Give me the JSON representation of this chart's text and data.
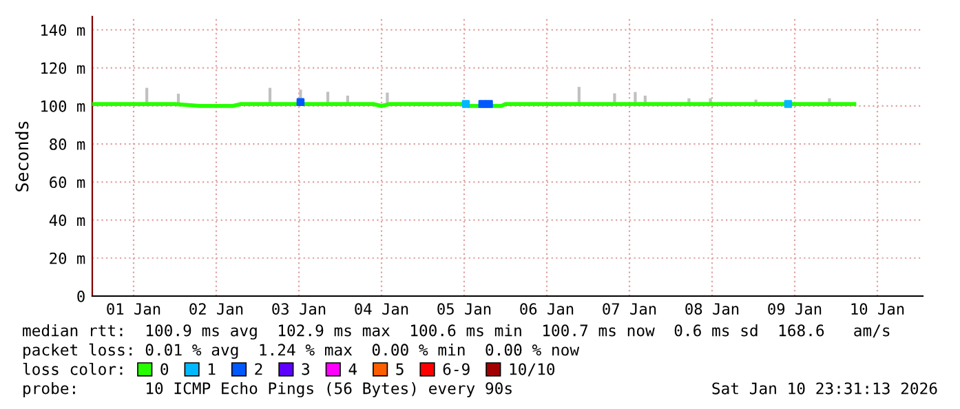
{
  "chart_data": {
    "type": "line",
    "ylabel": "Seconds",
    "xlim": [
      "2026-01-01T00:00",
      "2026-01-11T01:12"
    ],
    "ylim": [
      0,
      147
    ],
    "xticks": [
      {
        "value": "2026-01-01T12:00",
        "label": "01 Jan"
      },
      {
        "value": "2026-01-02T12:00",
        "label": "02 Jan"
      },
      {
        "value": "2026-01-03T12:00",
        "label": "03 Jan"
      },
      {
        "value": "2026-01-04T12:00",
        "label": "04 Jan"
      },
      {
        "value": "2026-01-05T12:00",
        "label": "05 Jan"
      },
      {
        "value": "2026-01-06T12:00",
        "label": "06 Jan"
      },
      {
        "value": "2026-01-07T12:00",
        "label": "07 Jan"
      },
      {
        "value": "2026-01-08T12:00",
        "label": "08 Jan"
      },
      {
        "value": "2026-01-09T12:00",
        "label": "09 Jan"
      },
      {
        "value": "2026-01-10T12:00",
        "label": "10 Jan"
      }
    ],
    "yticks": [
      0,
      {
        "value": 20,
        "label": "20 m"
      },
      {
        "value": 40,
        "label": "40 m"
      },
      {
        "value": 60,
        "label": "60 m"
      },
      {
        "value": 80,
        "label": "80 m"
      },
      {
        "value": 100,
        "label": "100 m"
      },
      {
        "value": 120,
        "label": "120 m"
      },
      {
        "value": 140,
        "label": "140 m"
      }
    ],
    "grid": true,
    "legend": "bottom",
    "legend_title": "loss color:",
    "series": [
      {
        "type": "bar",
        "color": "#c0c0c0",
        "x": [
          "2026-01-01T15:50",
          "2026-01-02T01:00",
          "2026-01-03T03:36",
          "2026-01-03T12:29",
          "2026-01-03T20:24",
          "2026-01-04T02:10",
          "2026-01-04T13:41",
          "2026-01-06T21:22",
          "2026-01-07T07:41",
          "2026-01-07T13:41",
          "2026-01-07T16:34",
          "2026-01-08T05:17",
          "2026-01-08T11:31",
          "2026-01-09T00:43",
          "2026-01-09T22:05"
        ],
        "base": [
          101,
          101,
          101,
          101,
          101,
          101,
          101,
          101,
          101,
          101,
          101,
          101,
          101,
          101,
          101
        ],
        "values": [
          8.5,
          5.4,
          8.5,
          7.6,
          6.4,
          4.4,
          6,
          9,
          5.6,
          6.3,
          4.4,
          3,
          3,
          2.3,
          3
        ]
      },
      {
        "name": "0",
        "color": "#26ff00",
        "x": [
          "2026-01-01T00:00",
          "2026-01-01T21:36",
          "2026-01-02T00:00",
          "2026-01-02T07:12",
          "2026-01-02T16:48",
          "2026-01-02T19:12",
          "2026-01-04T09:36",
          "2026-01-04T12:00",
          "2026-01-04T14:24",
          "2026-01-05T12:00",
          "2026-01-05T13:12",
          "2026-01-05T14:24",
          "2026-01-05T22:48",
          "2026-01-06T00:00",
          "2026-01-10T05:17"
        ],
        "values": [
          101,
          101,
          101,
          100,
          100,
          101,
          101,
          100,
          101,
          101,
          100,
          100,
          100,
          101,
          101
        ]
      },
      {
        "name": "1",
        "type": "scatter",
        "color": "#00b8ff",
        "x": [
          "2026-01-05T12:29",
          "2026-01-09T10:05"
        ],
        "values": [
          101,
          101
        ]
      },
      {
        "name": "2",
        "type": "scatter",
        "color": "#0059ff",
        "x": [
          "2026-01-03T12:29",
          "2026-01-05T17:17",
          "2026-01-05T19:12"
        ],
        "values": [
          102,
          101,
          101
        ]
      },
      {
        "name": "3",
        "type": "scatter",
        "color": "#5e00ff"
      },
      {
        "name": "4",
        "type": "scatter",
        "color": "#ff00ff"
      },
      {
        "name": "5",
        "type": "scatter",
        "color": "#ff5e00"
      },
      {
        "name": "6-9",
        "type": "scatter",
        "color": "#ff0000"
      },
      {
        "name": "10/10",
        "type": "scatter",
        "color": "#a10000"
      }
    ],
    "annotations": [
      "median rtt:  100.9 ms avg  102.9 ms max  100.6 ms min  100.7 ms now  0.6 ms sd  168.6   am/s",
      "packet loss: 0.01 % avg  1.24 % max  0.00 % min  0.00 % now",
      "probe:       10 ICMP Echo Pings (56 Bytes) every 90s",
      "Sat Jan 10 23:31:13 2026"
    ]
  }
}
